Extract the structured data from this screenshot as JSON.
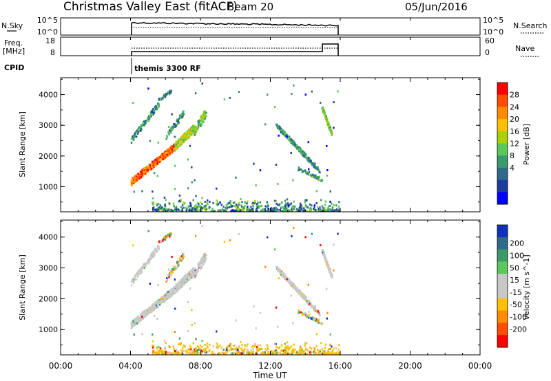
{
  "header": {
    "station": "Christmas Valley East (fitACF)",
    "beam": "Beam 20",
    "date": "05/Jun/2016"
  },
  "top_panels": {
    "nsky_label": "N.Sky",
    "nsky_ticks": [
      "10^5",
      "10^0"
    ],
    "nsearch_label": "N.Search",
    "nsearch_ticks": [
      "10^5",
      "10^0"
    ],
    "freq_label_1": "Freq.",
    "freq_label_2": "[MHz]",
    "freq_ticks": [
      "18",
      "8"
    ],
    "nave_label": "Nave",
    "nave_ticks": [
      "60",
      "0"
    ],
    "cpid_label": "CPID",
    "cpid_text": "themis 3300 RF"
  },
  "chart_data": [
    {
      "type": "heatmap",
      "panel": "power",
      "ylabel": "Slant Range [km]",
      "yticks": [
        1000,
        2000,
        3000,
        4000
      ],
      "ylim": [
        180,
        4550
      ],
      "x_start_hours": 4,
      "x_end_hours": 16,
      "colorbar_label": "Power [dB]",
      "colorbar_ticks": [
        "28",
        "24",
        "20",
        "16",
        "12",
        "8",
        "4"
      ],
      "colorbar_colors": [
        "#ff0000",
        "#ff4d00",
        "#ff8c00",
        "#ffc000",
        "#a8d200",
        "#5ac85a",
        "#3a9a6a",
        "#2e6a8a",
        "#1e3c9e",
        "#0000ff"
      ]
    },
    {
      "type": "heatmap",
      "panel": "velocity",
      "ylabel": "Slant Range [km]",
      "yticks": [
        1000,
        2000,
        3000,
        4000
      ],
      "ylim": [
        180,
        4550
      ],
      "x_start_hours": 4,
      "x_end_hours": 16,
      "colorbar_label": "Velocity [m s^-1]",
      "colorbar_ticks": [
        "200",
        "100",
        "50",
        "15",
        "-15",
        "-50",
        "-100",
        "-200"
      ],
      "colorbar_colors": [
        "#1030c0",
        "#2e6a8a",
        "#3a9a6a",
        "#5ac85a",
        "#c8c8c8",
        "#c8c8c8",
        "#ffc000",
        "#ff8c00",
        "#ff4d00",
        "#ff0000"
      ]
    }
  ],
  "x_axis": {
    "label": "Time UT",
    "ticks": [
      "00:00",
      "04:00",
      "08:00",
      "12:00",
      "16:00",
      "20:00",
      "00:00"
    ]
  }
}
